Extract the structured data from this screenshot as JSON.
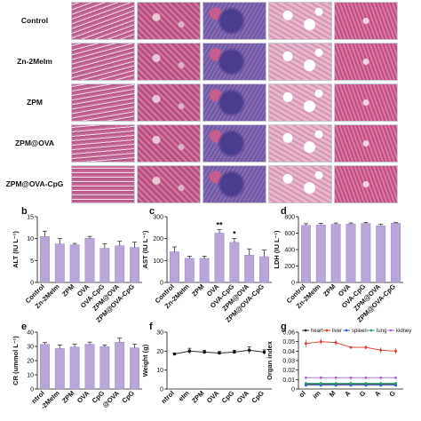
{
  "histology": {
    "rows": [
      "Control",
      "Zn-2MeIm",
      "ZPM",
      "ZPM@OVA",
      "ZPM@OVA-CpG"
    ],
    "tissue_palette": [
      "#c96a9a",
      "#b9507f",
      "#6d5aa6",
      "#e7b7cc",
      "#c04d80"
    ]
  },
  "chart_data": [
    {
      "panel": "b",
      "type": "bar",
      "categories": [
        "Control",
        "Zn-2MeIm",
        "ZPM",
        "OVA",
        "OVA-CpG",
        "ZPM@OVA",
        "ZPM@OVA-CpG"
      ],
      "values": [
        10.5,
        8.8,
        8.6,
        10.1,
        7.8,
        8.4,
        8.0
      ],
      "errors": [
        1.2,
        1.2,
        0.3,
        0.4,
        1.0,
        1.0,
        1.2
      ],
      "ylabel": "ALT (IU L⁻¹)",
      "ylim": [
        0,
        15
      ],
      "yticks": [
        0,
        5,
        10,
        15
      ],
      "annotations": []
    },
    {
      "panel": "c",
      "type": "bar",
      "categories": [
        "Control",
        "Zn-2MeIm",
        "ZPM",
        "OVA",
        "OVA-CpG",
        "ZPM@OVA",
        "ZPM@OVA-CpG"
      ],
      "values": [
        140,
        110,
        110,
        225,
        183,
        125,
        118
      ],
      "errors": [
        22,
        10,
        10,
        17,
        18,
        28,
        30
      ],
      "ylabel": "AST (IU L⁻¹)",
      "ylim": [
        0,
        300
      ],
      "yticks": [
        0,
        100,
        200,
        300
      ],
      "annotations": [
        {
          "index": 3,
          "text": "**"
        },
        {
          "index": 4,
          "text": "*"
        }
      ]
    },
    {
      "panel": "d",
      "type": "bar",
      "categories": [
        "Control",
        "Zn-2MeIm",
        "ZPM",
        "OVA",
        "OVA-CpG",
        "ZPM@OVA",
        "ZPM@OVA-CpG"
      ],
      "values": [
        695,
        700,
        708,
        712,
        718,
        690,
        722
      ],
      "errors": [
        20,
        18,
        15,
        12,
        12,
        20,
        6
      ],
      "ylabel": "LDH (IU L⁻¹)",
      "ylim": [
        0,
        800
      ],
      "yticks": [
        0,
        200,
        400,
        600,
        800
      ],
      "annotations": []
    },
    {
      "panel": "e",
      "type": "bar",
      "categories": [
        "Control",
        "Zn-2MeIm",
        "ZPM",
        "OVA",
        "OVA-CpG",
        "ZPM@OVA",
        "ZPM@OVA-CpG"
      ],
      "values": [
        31.5,
        28.5,
        29.5,
        31.5,
        29.8,
        33.0,
        29.0
      ],
      "errors": [
        1.2,
        2.5,
        2.0,
        1.5,
        1.2,
        2.8,
        2.5
      ],
      "ylabel": "CR (ummol L⁻¹)",
      "ylim": [
        0,
        40
      ],
      "yticks": [
        0,
        10,
        20,
        30,
        40
      ],
      "xtick_labels": [
        "ntrol",
        "-2MeIm",
        "ZPM",
        "OVA",
        "CpG",
        "@OVA",
        "CpG"
      ],
      "annotations": []
    },
    {
      "panel": "f",
      "type": "line",
      "x": [
        1,
        2,
        3,
        4,
        5,
        6,
        7
      ],
      "values": [
        18.5,
        20.0,
        19.5,
        19.0,
        19.5,
        20.5,
        19.5
      ],
      "errors": [
        0.5,
        1.5,
        1.0,
        0.8,
        1.0,
        1.8,
        1.2
      ],
      "ylabel": "Weight (g)",
      "ylim": [
        0,
        30
      ],
      "yticks": [
        0,
        10,
        20,
        30
      ],
      "xtick_labels": [
        "ntrol",
        "eIm",
        "ZPM",
        "OVA",
        "CpG",
        "OVA",
        "CpG"
      ]
    },
    {
      "panel": "g",
      "type": "line",
      "x": [
        1,
        2,
        3,
        4,
        5,
        6,
        7
      ],
      "ylabel": "Organ index",
      "ylim": [
        0,
        0.06
      ],
      "yticks": [
        0,
        0.01,
        0.02,
        0.03,
        0.04,
        0.05,
        0.06
      ],
      "xtick_labels": [
        "ol",
        "im",
        "M",
        "A",
        "G",
        "A",
        "G"
      ],
      "legend_position": "top",
      "series": [
        {
          "name": "heart",
          "color": "#222222",
          "values": [
            0.005,
            0.005,
            0.005,
            0.005,
            0.005,
            0.005,
            0.005
          ]
        },
        {
          "name": "liver",
          "color": "#e03a2e",
          "values": [
            0.048,
            0.05,
            0.049,
            0.044,
            0.044,
            0.041,
            0.04
          ]
        },
        {
          "name": "spleen",
          "color": "#2f5fd0",
          "values": [
            0.004,
            0.004,
            0.004,
            0.004,
            0.004,
            0.004,
            0.004
          ]
        },
        {
          "name": "lung",
          "color": "#2aa36b",
          "values": [
            0.006,
            0.006,
            0.006,
            0.006,
            0.006,
            0.006,
            0.006
          ]
        },
        {
          "name": "kidney",
          "color": "#a569d0",
          "values": [
            0.012,
            0.012,
            0.012,
            0.012,
            0.012,
            0.012,
            0.012
          ]
        }
      ],
      "liver_errors": [
        0.004,
        0.003,
        0.003,
        0.001,
        0.002,
        0.003,
        0.003
      ]
    }
  ]
}
